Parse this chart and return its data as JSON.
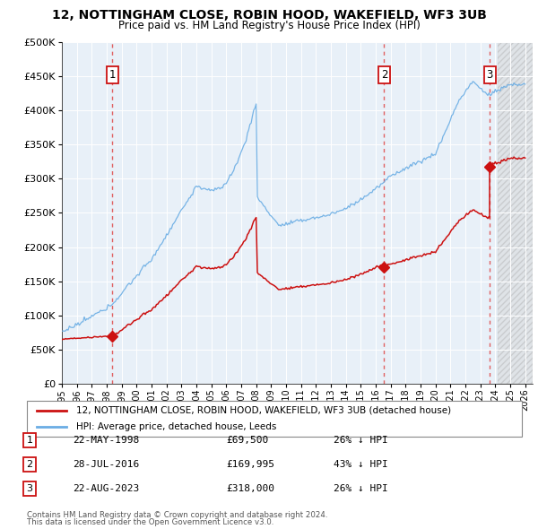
{
  "title1": "12, NOTTINGHAM CLOSE, ROBIN HOOD, WAKEFIELD, WF3 3UB",
  "title2": "Price paid vs. HM Land Registry's House Price Index (HPI)",
  "legend_label1": "12, NOTTINGHAM CLOSE, ROBIN HOOD, WAKEFIELD, WF3 3UB (detached house)",
  "legend_label2": "HPI: Average price, detached house, Leeds",
  "table_rows": [
    {
      "num": "1",
      "date": "22-MAY-1998",
      "price": "£69,500",
      "pct": "26% ↓ HPI"
    },
    {
      "num": "2",
      "date": "28-JUL-2016",
      "price": "£169,995",
      "pct": "43% ↓ HPI"
    },
    {
      "num": "3",
      "date": "22-AUG-2023",
      "price": "£318,000",
      "pct": "26% ↓ HPI"
    }
  ],
  "footnote1": "Contains HM Land Registry data © Crown copyright and database right 2024.",
  "footnote2": "This data is licensed under the Open Government Licence v3.0.",
  "sale_years": [
    1998.38,
    2016.57,
    2023.64
  ],
  "sale_prices": [
    69500,
    169995,
    318000
  ],
  "sale_labels": [
    "1",
    "2",
    "3"
  ],
  "hpi_color": "#6aade4",
  "price_color": "#cc1111",
  "vline_color": "#e06060",
  "bg_color": "#e8f0f8",
  "ylim": [
    0,
    500000
  ],
  "xlim_start": 1995.0,
  "xlim_end": 2026.5,
  "hatch_start": 2024.17
}
